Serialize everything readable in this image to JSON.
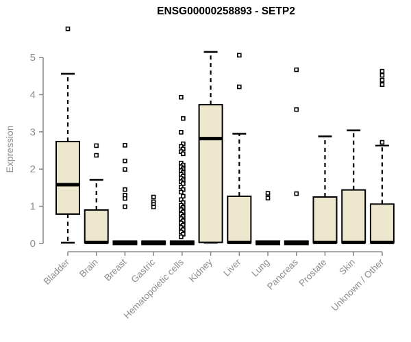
{
  "chart_data": {
    "type": "boxplot",
    "title": "ENSG00000258893 - SETP2",
    "ylabel": "Expression",
    "xlabel": "",
    "ylim": [
      0,
      5
    ],
    "yticks": [
      0,
      1,
      2,
      3,
      4,
      5
    ],
    "grid": false,
    "legend": null,
    "categories": [
      "Bladder",
      "Brain",
      "Breast",
      "Gastric",
      "Hematopoietic cells",
      "Kidney",
      "Liver",
      "Lung",
      "Pancreas",
      "Prostate",
      "Skin",
      "Unknown / Other"
    ],
    "series": [
      {
        "name": "Bladder",
        "low": 0.02,
        "q1": 0.79,
        "median": 1.58,
        "q3": 2.74,
        "high": 4.56,
        "outliers": [
          5.77
        ]
      },
      {
        "name": "Brain",
        "low": 0.02,
        "q1": 0.02,
        "median": 0.03,
        "q3": 0.9,
        "high": 1.71,
        "outliers": [
          2.63,
          2.37
        ]
      },
      {
        "name": "Breast",
        "low": 0.02,
        "q1": 0.02,
        "median": 0.02,
        "q3": 0.02,
        "high": 0.02,
        "outliers": [
          2.64,
          2.22,
          1.99,
          1.45,
          1.3,
          1.21,
          0.99
        ]
      },
      {
        "name": "Gastric",
        "low": 0.02,
        "q1": 0.02,
        "median": 0.02,
        "q3": 0.02,
        "high": 0.02,
        "outliers": [
          1.25,
          1.12,
          1.05,
          0.98
        ]
      },
      {
        "name": "Hematopoietic cells",
        "low": 0.02,
        "q1": 0.02,
        "median": 0.02,
        "q3": 0.02,
        "high": 0.02,
        "outliers": [
          3.93,
          3.36,
          2.99,
          2.68,
          2.61,
          2.54,
          2.47,
          2.41,
          2.16,
          2.11,
          2.06,
          2.01,
          1.96,
          1.91,
          1.86,
          1.81,
          1.76,
          1.71,
          1.66,
          1.61,
          1.52,
          1.45,
          1.38,
          1.27,
          1.18,
          1.1,
          1.03,
          0.97,
          0.91,
          0.85,
          0.79,
          0.73,
          0.67,
          0.61,
          0.55,
          0.49,
          0.43,
          0.37,
          0.31,
          0.25,
          0.18
        ]
      },
      {
        "name": "Kidney",
        "low": 0.02,
        "q1": 0.03,
        "median": 2.82,
        "q3": 3.73,
        "high": 5.15,
        "outliers": []
      },
      {
        "name": "Liver",
        "low": 0.02,
        "q1": 0.02,
        "median": 0.03,
        "q3": 1.27,
        "high": 2.95,
        "outliers": [
          5.06,
          4.21
        ]
      },
      {
        "name": "Lung",
        "low": 0.02,
        "q1": 0.02,
        "median": 0.02,
        "q3": 0.02,
        "high": 0.02,
        "outliers": [
          1.35,
          1.22
        ]
      },
      {
        "name": "Pancreas",
        "low": 0.02,
        "q1": 0.02,
        "median": 0.02,
        "q3": 0.02,
        "high": 0.02,
        "outliers": [
          4.67,
          3.6,
          1.34
        ]
      },
      {
        "name": "Prostate",
        "low": 0.02,
        "q1": 0.02,
        "median": 0.03,
        "q3": 1.25,
        "high": 2.88,
        "outliers": []
      },
      {
        "name": "Skin",
        "low": 0.02,
        "q1": 0.02,
        "median": 0.03,
        "q3": 1.44,
        "high": 3.04,
        "outliers": []
      },
      {
        "name": "Unknown / Other",
        "low": 0.02,
        "q1": 0.02,
        "median": 0.03,
        "q3": 1.06,
        "high": 2.63,
        "outliers": [
          4.63,
          4.52,
          4.39,
          4.27,
          2.72
        ]
      }
    ],
    "colors": {
      "box_fill": "#EDE7CD",
      "box_stroke": "#000000",
      "median": "#000000",
      "whisker": "#000000",
      "outlier_fill": "#FFFFFF",
      "outlier_stroke": "#000000",
      "axis": "#8C8C8C",
      "tick_label": "#8C8C8C",
      "title": "#000000",
      "background": "#FFFFFF"
    }
  }
}
